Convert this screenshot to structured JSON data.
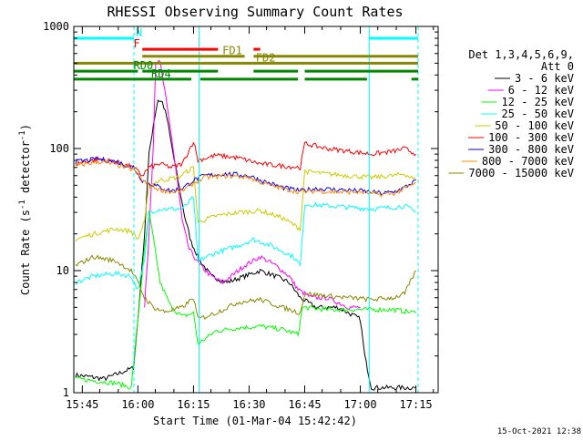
{
  "chart_data": {
    "type": "line",
    "title": "RHESSI Observing Summary Count Rates",
    "xlabel": "Start Time (01-Mar-04 15:42:42)",
    "ylabel": "Count Rate (s",
    "ylabel_sup1": "-1",
    "ylabel_mid": " detector",
    "ylabel_sup2": "-1",
    "ylabel_end": ")",
    "yscale": "log",
    "xlim": [
      15.7117,
      17.35
    ],
    "ylim": [
      1,
      1000
    ],
    "x_unit": "hour of day (UT)",
    "x_ticks": [
      {
        "v": 15.75,
        "label": "15:45"
      },
      {
        "v": 16.0,
        "label": "16:00"
      },
      {
        "v": 16.25,
        "label": "16:15"
      },
      {
        "v": 16.5,
        "label": "16:30"
      },
      {
        "v": 16.75,
        "label": "16:45"
      },
      {
        "v": 17.0,
        "label": "17:00"
      },
      {
        "v": 17.25,
        "label": "17:15"
      }
    ],
    "y_ticks": [
      {
        "v": 1,
        "label": "1"
      },
      {
        "v": 10,
        "label": "10"
      },
      {
        "v": 100,
        "label": "100"
      },
      {
        "v": 1000,
        "label": "1000"
      }
    ],
    "legend": {
      "placement": "right",
      "header_lines": [
        "Det 1,3,4,5,6,9,",
        "Att 0"
      ]
    },
    "series": [
      {
        "name": "3 - 6 keV",
        "color": "#000000",
        "points": [
          [
            15.72,
            1.4
          ],
          [
            15.85,
            1.3
          ],
          [
            15.98,
            1.6
          ],
          [
            16.0,
            4
          ],
          [
            16.03,
            20
          ],
          [
            16.05,
            90
          ],
          [
            16.07,
            160
          ],
          [
            16.09,
            250
          ],
          [
            16.11,
            240
          ],
          [
            16.13,
            180
          ],
          [
            16.15,
            110
          ],
          [
            16.18,
            55
          ],
          [
            16.21,
            28
          ],
          [
            16.24,
            17
          ],
          [
            16.28,
            12
          ],
          [
            16.33,
            9
          ],
          [
            16.4,
            8
          ],
          [
            16.48,
            9
          ],
          [
            16.55,
            10
          ],
          [
            16.62,
            9
          ],
          [
            16.68,
            8
          ],
          [
            16.73,
            6
          ],
          [
            16.8,
            5
          ],
          [
            16.9,
            5
          ],
          [
            17.0,
            4
          ],
          [
            17.02,
            2
          ],
          [
            17.05,
            1.1
          ],
          [
            17.2,
            1.1
          ],
          [
            17.25,
            1.1
          ]
        ]
      },
      {
        "name": "6 - 12 keV",
        "color": "#ff00ff",
        "points": [
          [
            16.03,
            5
          ],
          [
            16.05,
            20
          ],
          [
            16.07,
            120
          ],
          [
            16.08,
            520
          ],
          [
            16.1,
            500
          ],
          [
            16.12,
            300
          ],
          [
            16.15,
            130
          ],
          [
            16.18,
            50
          ],
          [
            16.2,
            25
          ],
          [
            16.23,
            15
          ],
          [
            16.28,
            11
          ],
          [
            16.33,
            9
          ],
          [
            16.38,
            8
          ],
          [
            16.42,
            9
          ],
          [
            16.48,
            11
          ],
          [
            16.55,
            13
          ],
          [
            16.62,
            11
          ],
          [
            16.68,
            9
          ],
          [
            16.72,
            7
          ],
          [
            16.78,
            6
          ],
          [
            16.85,
            6
          ],
          [
            16.95,
            5
          ],
          [
            17.0,
            5
          ]
        ]
      },
      {
        "name": "12 - 25 keV",
        "color": "#00ff00",
        "points": [
          [
            15.72,
            1.3
          ],
          [
            15.9,
            1.2
          ],
          [
            15.97,
            1.1
          ],
          [
            16.0,
            4
          ],
          [
            16.03,
            15
          ],
          [
            16.05,
            30
          ],
          [
            16.07,
            18
          ],
          [
            16.1,
            8
          ],
          [
            16.15,
            5
          ],
          [
            16.2,
            4.2
          ],
          [
            16.25,
            4.5
          ],
          [
            16.27,
            2.5
          ],
          [
            16.35,
            3.2
          ],
          [
            16.45,
            3.4
          ],
          [
            16.55,
            3.5
          ],
          [
            16.65,
            3.3
          ],
          [
            16.72,
            3
          ],
          [
            16.74,
            5
          ],
          [
            16.85,
            4.8
          ],
          [
            16.95,
            4.8
          ],
          [
            17.05,
            4.8
          ],
          [
            17.15,
            4.8
          ],
          [
            17.25,
            4.5
          ]
        ]
      },
      {
        "name": "25 - 50 keV",
        "color": "#00ffff",
        "points": [
          [
            15.72,
            8
          ],
          [
            15.8,
            9
          ],
          [
            15.9,
            9.5
          ],
          [
            15.97,
            9
          ],
          [
            16.0,
            7
          ],
          [
            16.03,
            12
          ],
          [
            16.05,
            30
          ],
          [
            16.1,
            32
          ],
          [
            16.2,
            32
          ],
          [
            16.25,
            40
          ],
          [
            16.27,
            12
          ],
          [
            16.35,
            14
          ],
          [
            16.45,
            16
          ],
          [
            16.52,
            18
          ],
          [
            16.6,
            16
          ],
          [
            16.7,
            13
          ],
          [
            16.73,
            11
          ],
          [
            16.75,
            35
          ],
          [
            16.85,
            34
          ],
          [
            16.95,
            33
          ],
          [
            17.05,
            32
          ],
          [
            17.15,
            33
          ],
          [
            17.2,
            34
          ],
          [
            17.25,
            30
          ]
        ]
      },
      {
        "name": "50 - 100 keV",
        "color": "#cccc00",
        "points": [
          [
            15.72,
            18
          ],
          [
            15.8,
            20
          ],
          [
            15.9,
            22
          ],
          [
            15.97,
            21
          ],
          [
            16.0,
            18
          ],
          [
            16.03,
            25
          ],
          [
            16.05,
            50
          ],
          [
            16.1,
            55
          ],
          [
            16.18,
            58
          ],
          [
            16.25,
            70
          ],
          [
            16.27,
            25
          ],
          [
            16.35,
            28
          ],
          [
            16.45,
            30
          ],
          [
            16.55,
            31
          ],
          [
            16.65,
            27
          ],
          [
            16.73,
            22
          ],
          [
            16.75,
            65
          ],
          [
            16.85,
            62
          ],
          [
            16.95,
            60
          ],
          [
            17.05,
            58
          ],
          [
            17.15,
            60
          ],
          [
            17.2,
            62
          ],
          [
            17.25,
            55
          ]
        ]
      },
      {
        "name": "100 - 300 keV",
        "color": "#ff0000",
        "points": [
          [
            15.72,
            75
          ],
          [
            15.82,
            82
          ],
          [
            15.9,
            78
          ],
          [
            15.98,
            70
          ],
          [
            16.02,
            60
          ],
          [
            16.05,
            70
          ],
          [
            16.1,
            75
          ],
          [
            16.15,
            70
          ],
          [
            16.2,
            75
          ],
          [
            16.25,
            115
          ],
          [
            16.27,
            80
          ],
          [
            16.35,
            88
          ],
          [
            16.45,
            84
          ],
          [
            16.55,
            75
          ],
          [
            16.65,
            72
          ],
          [
            16.73,
            70
          ],
          [
            16.75,
            110
          ],
          [
            16.85,
            100
          ],
          [
            16.95,
            95
          ],
          [
            17.05,
            90
          ],
          [
            17.15,
            95
          ],
          [
            17.2,
            100
          ],
          [
            17.25,
            90
          ]
        ]
      },
      {
        "name": "300 - 800 keV",
        "color": "#0000ff",
        "points": [
          [
            15.72,
            78
          ],
          [
            15.82,
            82
          ],
          [
            15.9,
            78
          ],
          [
            15.98,
            70
          ],
          [
            16.02,
            55
          ],
          [
            16.05,
            52
          ],
          [
            16.1,
            48
          ],
          [
            16.15,
            45
          ],
          [
            16.2,
            47
          ],
          [
            16.25,
            55
          ],
          [
            16.3,
            60
          ],
          [
            16.4,
            62
          ],
          [
            16.5,
            60
          ],
          [
            16.55,
            55
          ],
          [
            16.65,
            48
          ],
          [
            16.73,
            45
          ],
          [
            16.8,
            47
          ],
          [
            16.9,
            46
          ],
          [
            17.0,
            45
          ],
          [
            17.1,
            43
          ],
          [
            17.15,
            44
          ],
          [
            17.2,
            48
          ],
          [
            17.25,
            55
          ]
        ]
      },
      {
        "name": "800 - 7000 keV",
        "color": "#ff8800",
        "points": [
          [
            15.72,
            72
          ],
          [
            15.82,
            78
          ],
          [
            15.9,
            74
          ],
          [
            15.98,
            67
          ],
          [
            16.02,
            55
          ],
          [
            16.05,
            50
          ],
          [
            16.1,
            46
          ],
          [
            16.15,
            44
          ],
          [
            16.2,
            45
          ],
          [
            16.25,
            52
          ],
          [
            16.3,
            58
          ],
          [
            16.4,
            60
          ],
          [
            16.5,
            58
          ],
          [
            16.55,
            53
          ],
          [
            16.65,
            47
          ],
          [
            16.73,
            44
          ],
          [
            16.8,
            45
          ],
          [
            16.9,
            44
          ],
          [
            17.0,
            44
          ],
          [
            17.1,
            42
          ],
          [
            17.15,
            43
          ],
          [
            17.2,
            47
          ],
          [
            17.25,
            52
          ]
        ]
      },
      {
        "name": "7000 - 15000 keV",
        "color": "#888800",
        "points": [
          [
            15.72,
            11
          ],
          [
            15.8,
            13
          ],
          [
            15.9,
            12
          ],
          [
            15.97,
            10
          ],
          [
            16.0,
            8
          ],
          [
            16.03,
            6
          ],
          [
            16.07,
            5
          ],
          [
            16.12,
            4.6
          ],
          [
            16.2,
            5
          ],
          [
            16.25,
            6
          ],
          [
            16.27,
            4
          ],
          [
            16.35,
            4.5
          ],
          [
            16.45,
            5.5
          ],
          [
            16.55,
            5.8
          ],
          [
            16.65,
            5
          ],
          [
            16.73,
            4.5
          ],
          [
            16.75,
            6.5
          ],
          [
            16.85,
            6.2
          ],
          [
            16.95,
            6
          ],
          [
            17.05,
            5.8
          ],
          [
            17.15,
            6
          ],
          [
            17.2,
            6.5
          ],
          [
            17.25,
            10
          ]
        ]
      }
    ],
    "vlines": [
      {
        "x": 15.712,
        "style": "solid",
        "color": "#00ffff"
      },
      {
        "x": 15.982,
        "style": "dashed",
        "color": "#00ffff"
      },
      {
        "x": 16.275,
        "style": "solid",
        "color": "#00ffff"
      },
      {
        "x": 17.04,
        "style": "solid",
        "color": "#00ffff"
      },
      {
        "x": 17.26,
        "style": "dashed",
        "color": "#00ffff"
      }
    ],
    "status_bars": [
      {
        "label": "N",
        "color": "#00ffff",
        "row_y": 800,
        "intervals": [
          [
            15.712,
            15.982
          ],
          [
            17.04,
            17.26
          ]
        ],
        "label_x": 15.99
      },
      {
        "label": "F",
        "color": "#ff0000",
        "row_y": 650,
        "intervals": [
          [
            16.02,
            16.36
          ],
          [
            16.52,
            16.55
          ]
        ],
        "label_x": 15.98
      },
      {
        "label": "FD1",
        "color": "#888800",
        "row_y": 570,
        "intervals": [
          [
            16.02,
            16.48
          ],
          [
            16.52,
            17.26
          ]
        ],
        "label_x": 16.38
      },
      {
        "label": "FD2",
        "color": "#888800",
        "row_y": 500,
        "intervals": [
          [
            15.712,
            17.26
          ]
        ],
        "label_x": 16.53
      },
      {
        "label": "RD0",
        "color": "#008800",
        "row_y": 430,
        "intervals": [
          [
            15.712,
            16.0
          ],
          [
            16.02,
            16.36
          ],
          [
            16.52,
            16.72
          ],
          [
            16.75,
            17.26
          ]
        ],
        "label_x": 15.98
      },
      {
        "label": "RD4",
        "color": "#008800",
        "row_y": 370,
        "intervals": [
          [
            15.712,
            16.24
          ],
          [
            16.28,
            16.72
          ],
          [
            16.75,
            17.03
          ],
          [
            17.23,
            17.26
          ]
        ],
        "label_x": 16.06
      }
    ]
  },
  "timestamp": "15-Oct-2021 12:38"
}
